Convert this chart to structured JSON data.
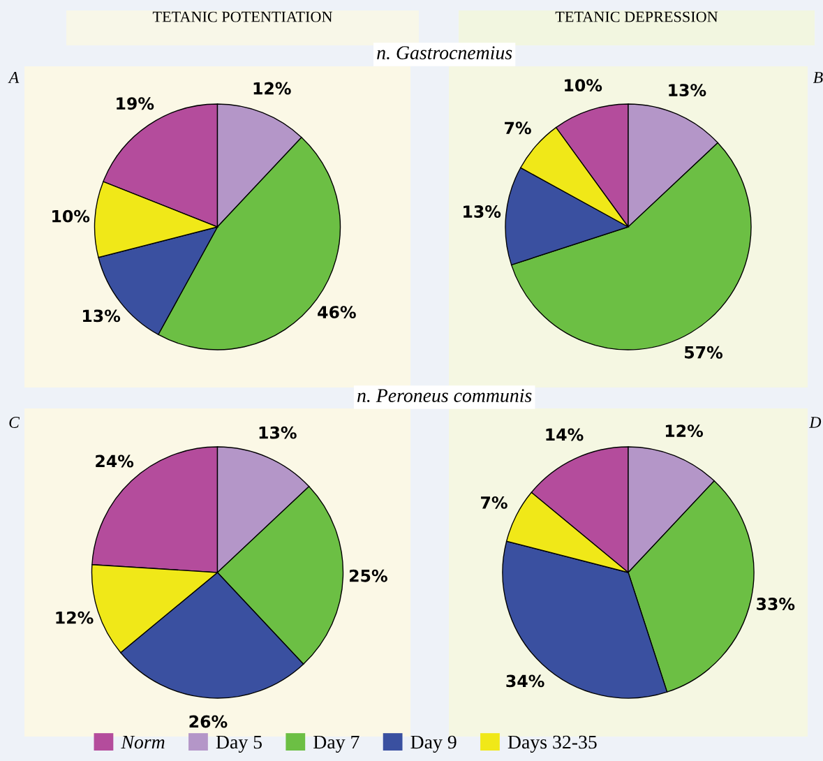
{
  "chart_data": [
    {
      "type": "pie",
      "title": "A",
      "subtitle": "TETANIC POTENTIATION",
      "annotations": [
        "n. Gastrocnemius"
      ],
      "legend": "bottom",
      "categories": [
        "Norm",
        "Day 5",
        "Day 7",
        "Day 9",
        "Days 32-35"
      ],
      "values": [
        19,
        12,
        46,
        13,
        10
      ],
      "value_labels": [
        "19%",
        "12%",
        "46%",
        "13%",
        "10%"
      ],
      "colors": [
        "#b44c9c",
        "#b496c8",
        "#6cbf44",
        "#3a50a0",
        "#f0e818"
      ]
    },
    {
      "type": "pie",
      "title": "B",
      "subtitle": "TETANIC DEPRESSION",
      "categories": [
        null,
        null,
        null,
        null,
        null
      ],
      "values": [
        10,
        13,
        57,
        13,
        7
      ],
      "value_labels": [
        "10%",
        "13%",
        "57%",
        "13%",
        "7%"
      ],
      "colors": [
        "#b44c9c",
        "#b496c8",
        "#6cbf44",
        "#3a50a0",
        "#f0e818"
      ]
    },
    {
      "type": "pie",
      "title": "C",
      "annotations": [
        "n. Peroneus communis"
      ],
      "categories": [
        null,
        null,
        null,
        null,
        null
      ],
      "values": [
        24,
        13,
        25,
        26,
        12
      ],
      "value_labels": [
        "24%",
        "13%",
        "25%",
        "26%",
        "12%"
      ],
      "colors": [
        "#b44c9c",
        "#b496c8",
        "#6cbf44",
        "#3a50a0",
        "#f0e818"
      ]
    },
    {
      "type": "pie",
      "title": "D",
      "categories": [
        null,
        null,
        null,
        null,
        null
      ],
      "values": [
        14,
        12,
        33,
        34,
        7
      ],
      "value_labels": [
        "14%",
        "12%",
        "33%",
        "34%",
        "7%"
      ],
      "colors": [
        "#b44c9c",
        "#b496c8",
        "#6cbf44",
        "#3a50a0",
        "#f0e818"
      ]
    }
  ]
}
